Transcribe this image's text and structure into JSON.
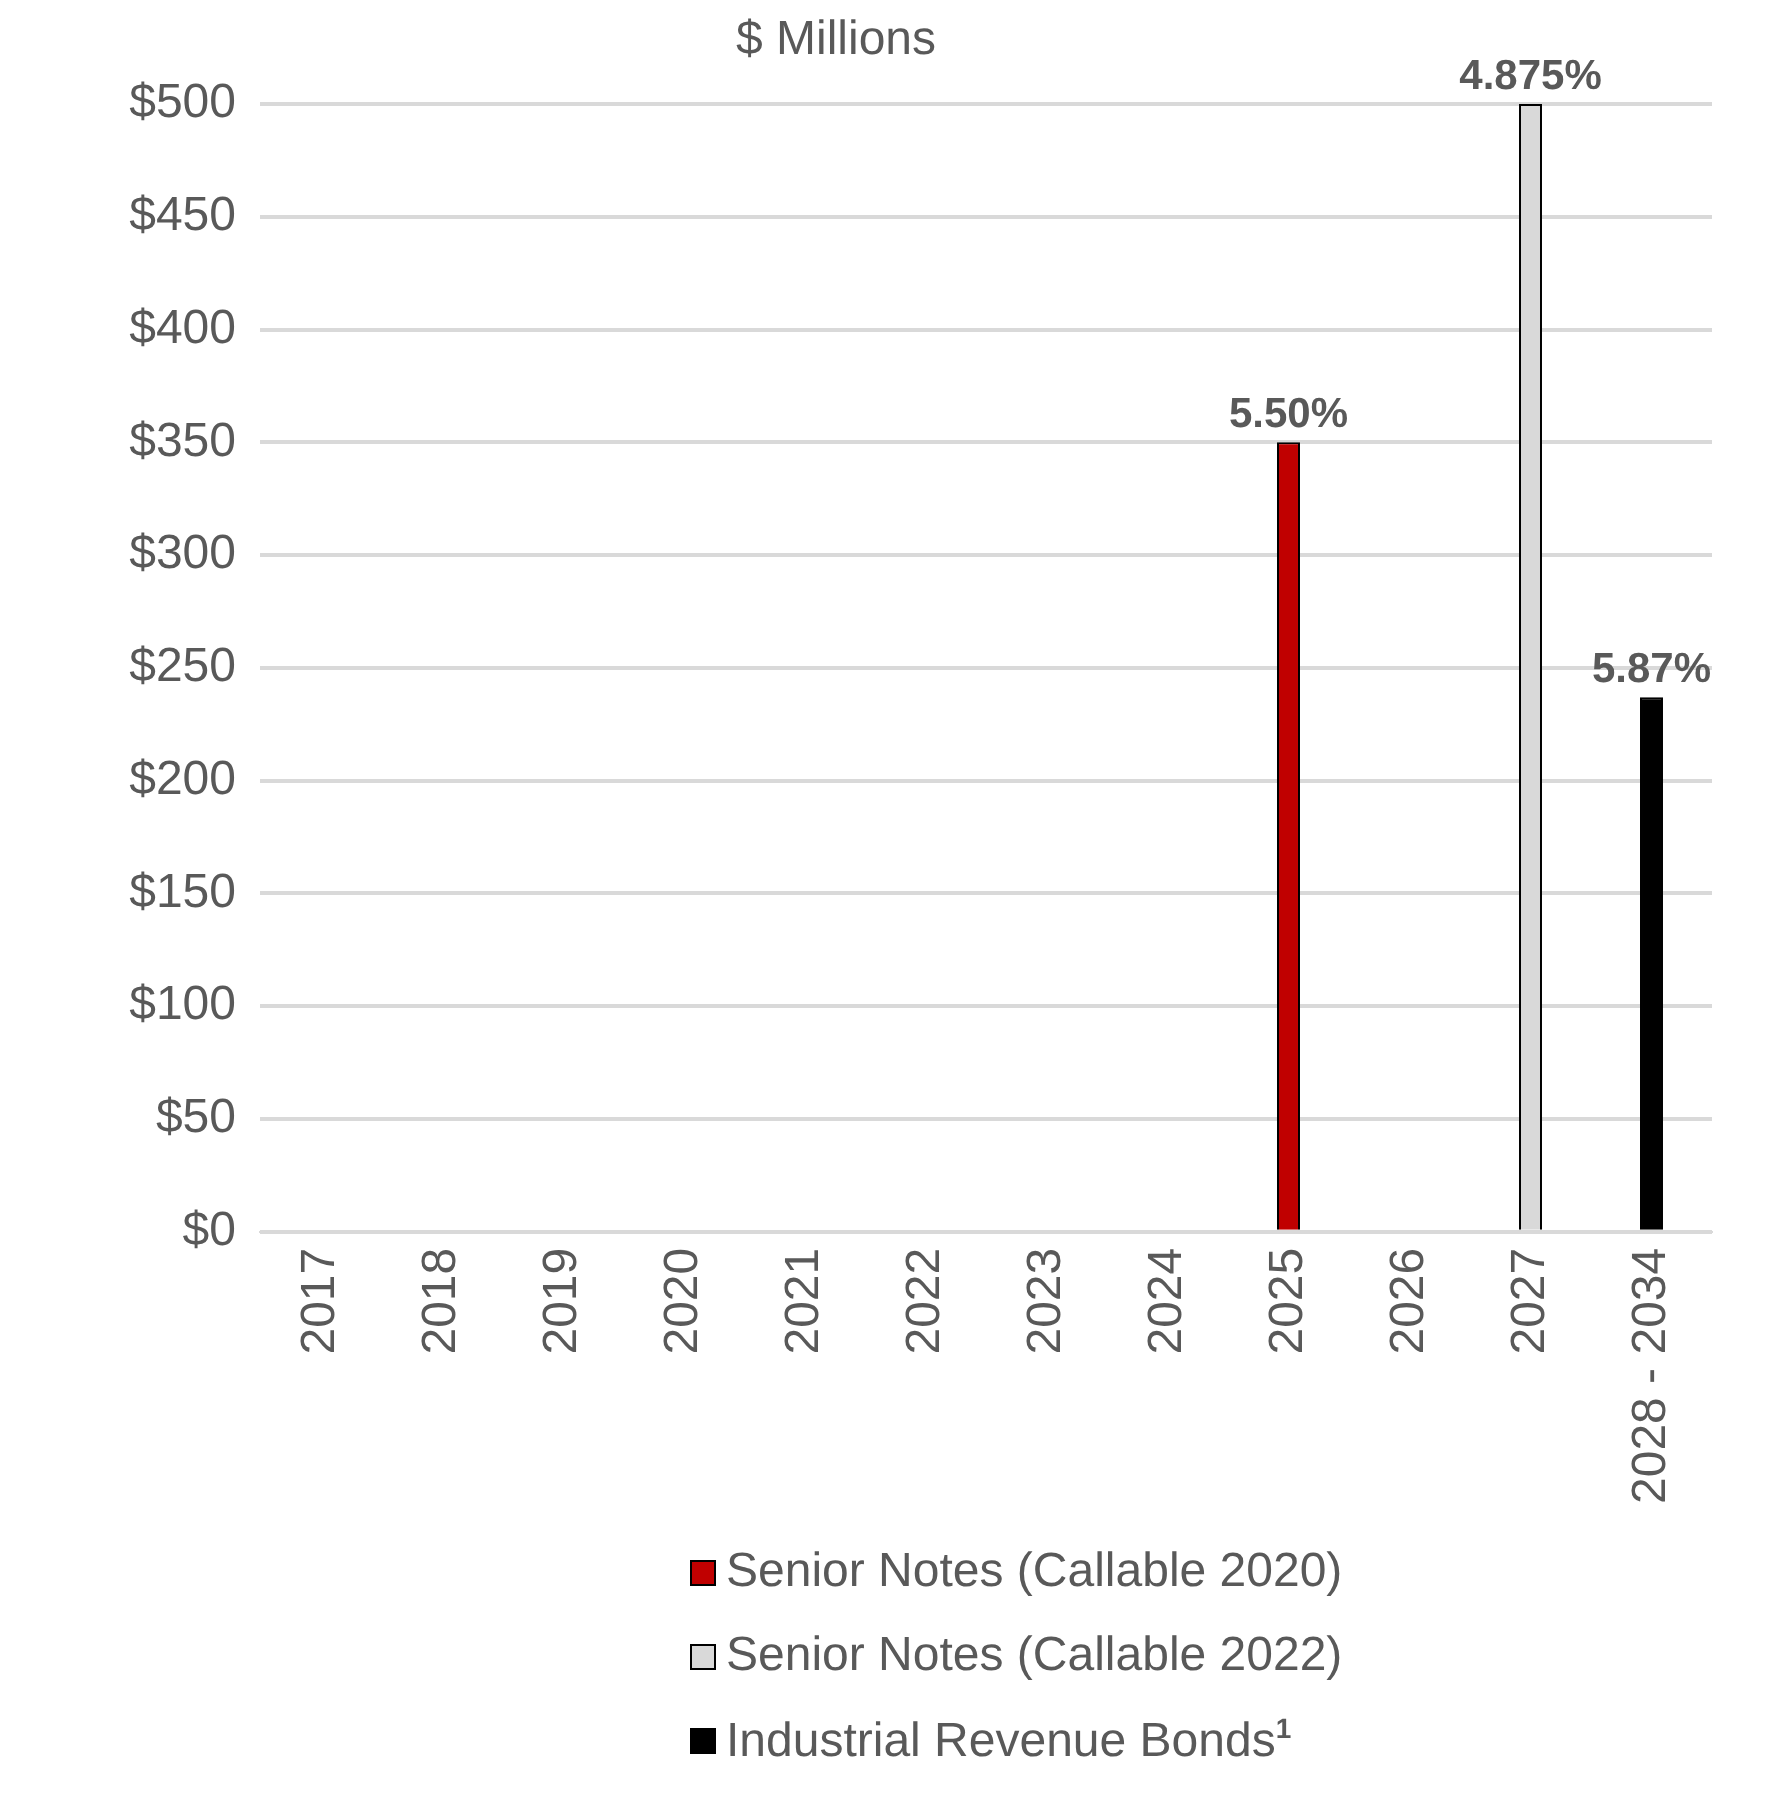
{
  "chart_data": {
    "type": "bar",
    "title": "$ Millions",
    "stacked": true,
    "categories": [
      "2017",
      "2018",
      "2019",
      "2020",
      "2021",
      "2022",
      "2023",
      "2024",
      "2025",
      "2026",
      "2027",
      "2028 - 2034"
    ],
    "series": [
      {
        "name": "Senior Notes (Callable 2020)",
        "color": "#c00000",
        "values": [
          null,
          null,
          null,
          null,
          null,
          null,
          null,
          null,
          350,
          null,
          null,
          null
        ]
      },
      {
        "name": "Senior Notes (Callable 2022)",
        "color": "#d9d9d9",
        "values": [
          null,
          null,
          null,
          null,
          null,
          null,
          null,
          null,
          null,
          null,
          500,
          null
        ]
      },
      {
        "name": "Industrial Revenue Bonds$^{1}$",
        "color": "#000000",
        "values": [
          null,
          null,
          null,
          null,
          null,
          null,
          null,
          null,
          null,
          null,
          null,
          237
        ]
      }
    ],
    "annotations": [
      {
        "text": "5.50%",
        "x": "2025",
        "y": 350
      },
      {
        "text": "4.875%",
        "x": "2027",
        "y": 500
      },
      {
        "text": "5.87%",
        "x": "2028 - 2034",
        "y": 237
      }
    ],
    "ylim": [
      0,
      500
    ],
    "yticks": [
      {
        "value": 0,
        "label": "$0"
      },
      {
        "value": 50,
        "label": "$50"
      },
      {
        "value": 100,
        "label": "$100"
      },
      {
        "value": 150,
        "label": "$150"
      },
      {
        "value": 200,
        "label": "$200"
      },
      {
        "value": 250,
        "label": "$250"
      },
      {
        "value": 300,
        "label": "$300"
      },
      {
        "value": 350,
        "label": "$350"
      },
      {
        "value": 400,
        "label": "$400"
      },
      {
        "value": 450,
        "label": "$450"
      },
      {
        "value": 500,
        "label": "$500"
      }
    ],
    "grid": "y",
    "legend": "bottom"
  }
}
